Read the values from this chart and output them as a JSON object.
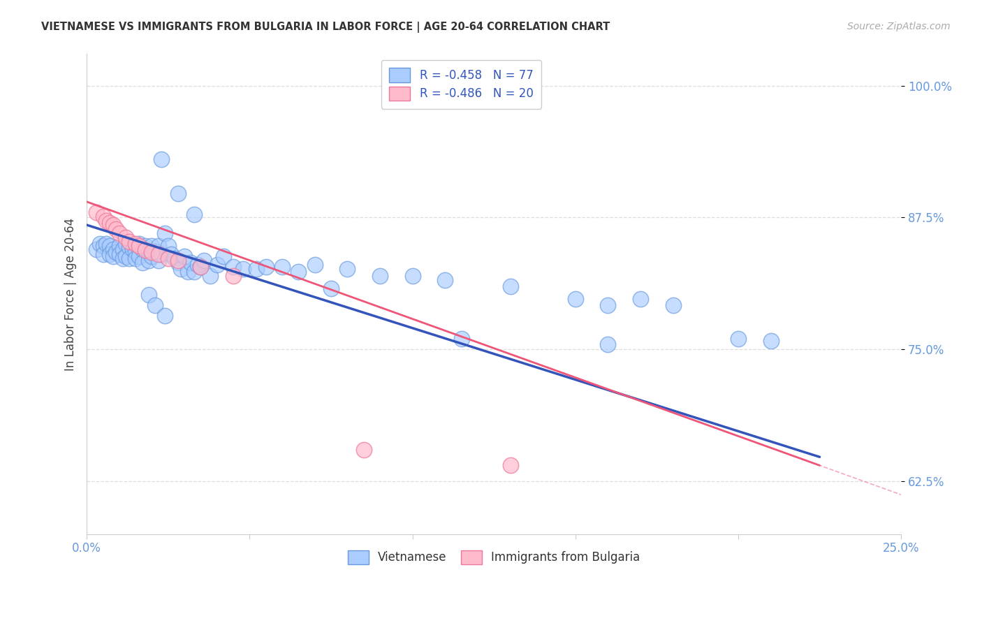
{
  "title": "VIETNAMESE VS IMMIGRANTS FROM BULGARIA IN LABOR FORCE | AGE 20-64 CORRELATION CHART",
  "source": "Source: ZipAtlas.com",
  "ylabel": "In Labor Force | Age 20-64",
  "xlim": [
    0.0,
    0.25
  ],
  "ylim": [
    0.575,
    1.03
  ],
  "x_tick_positions": [
    0.0,
    0.05,
    0.1,
    0.15,
    0.2,
    0.25
  ],
  "x_tick_labels": [
    "0.0%",
    "",
    "",
    "",
    "",
    "25.0%"
  ],
  "y_tick_positions": [
    0.625,
    0.75,
    0.875,
    1.0
  ],
  "y_tick_labels": [
    "62.5%",
    "75.0%",
    "87.5%",
    "100.0%"
  ],
  "legend1_label1": "R = -0.458   N = 77",
  "legend1_label2": "R = -0.486   N = 20",
  "legend2_label1": "Vietnamese",
  "legend2_label2": "Immigrants from Bulgaria",
  "title_color": "#333333",
  "source_color": "#aaaaaa",
  "tick_color": "#6699dd",
  "grid_color": "#dddddd",
  "scatter_blue_fill": "#aaccff",
  "scatter_blue_edge": "#6699dd",
  "scatter_pink_fill": "#ffbbcc",
  "scatter_pink_edge": "#ee7799",
  "line_blue_color": "#3355bb",
  "line_pink_color": "#ee5577",
  "blue_line": [
    [
      0.0,
      0.868
    ],
    [
      0.225,
      0.648
    ]
  ],
  "pink_line": [
    [
      0.0,
      0.89
    ],
    [
      0.225,
      0.64
    ]
  ],
  "blue_x": [
    0.003,
    0.004,
    0.005,
    0.005,
    0.006,
    0.007,
    0.007,
    0.008,
    0.008,
    0.009,
    0.01,
    0.01,
    0.011,
    0.011,
    0.012,
    0.012,
    0.013,
    0.013,
    0.014,
    0.015,
    0.015,
    0.016,
    0.016,
    0.017,
    0.017,
    0.018,
    0.019,
    0.019,
    0.02,
    0.02,
    0.021,
    0.022,
    0.022,
    0.023,
    0.024,
    0.025,
    0.026,
    0.027,
    0.028,
    0.029,
    0.03,
    0.031,
    0.032,
    0.033,
    0.034,
    0.035,
    0.036,
    0.038,
    0.04,
    0.042,
    0.045,
    0.048,
    0.052,
    0.055,
    0.06,
    0.065,
    0.07,
    0.075,
    0.08,
    0.09,
    0.1,
    0.11,
    0.13,
    0.15,
    0.16,
    0.17,
    0.18,
    0.2,
    0.21,
    0.023,
    0.028,
    0.033,
    0.019,
    0.021,
    0.024,
    0.115,
    0.16
  ],
  "blue_y": [
    0.845,
    0.85,
    0.848,
    0.84,
    0.85,
    0.848,
    0.84,
    0.845,
    0.838,
    0.842,
    0.848,
    0.84,
    0.845,
    0.836,
    0.85,
    0.838,
    0.847,
    0.836,
    0.845,
    0.843,
    0.836,
    0.85,
    0.838,
    0.845,
    0.832,
    0.848,
    0.842,
    0.834,
    0.848,
    0.838,
    0.843,
    0.848,
    0.834,
    0.84,
    0.86,
    0.848,
    0.84,
    0.836,
    0.832,
    0.826,
    0.838,
    0.824,
    0.832,
    0.824,
    0.83,
    0.828,
    0.834,
    0.82,
    0.83,
    0.838,
    0.828,
    0.826,
    0.826,
    0.828,
    0.828,
    0.824,
    0.83,
    0.808,
    0.826,
    0.82,
    0.82,
    0.816,
    0.81,
    0.798,
    0.792,
    0.798,
    0.792,
    0.76,
    0.758,
    0.93,
    0.898,
    0.878,
    0.802,
    0.792,
    0.782,
    0.76,
    0.755
  ],
  "pink_x": [
    0.003,
    0.005,
    0.006,
    0.007,
    0.008,
    0.009,
    0.01,
    0.012,
    0.013,
    0.015,
    0.016,
    0.018,
    0.02,
    0.022,
    0.025,
    0.028,
    0.035,
    0.045,
    0.085,
    0.13
  ],
  "pink_y": [
    0.88,
    0.876,
    0.872,
    0.87,
    0.868,
    0.864,
    0.86,
    0.856,
    0.852,
    0.85,
    0.848,
    0.844,
    0.842,
    0.84,
    0.836,
    0.834,
    0.828,
    0.82,
    0.655,
    0.64
  ]
}
